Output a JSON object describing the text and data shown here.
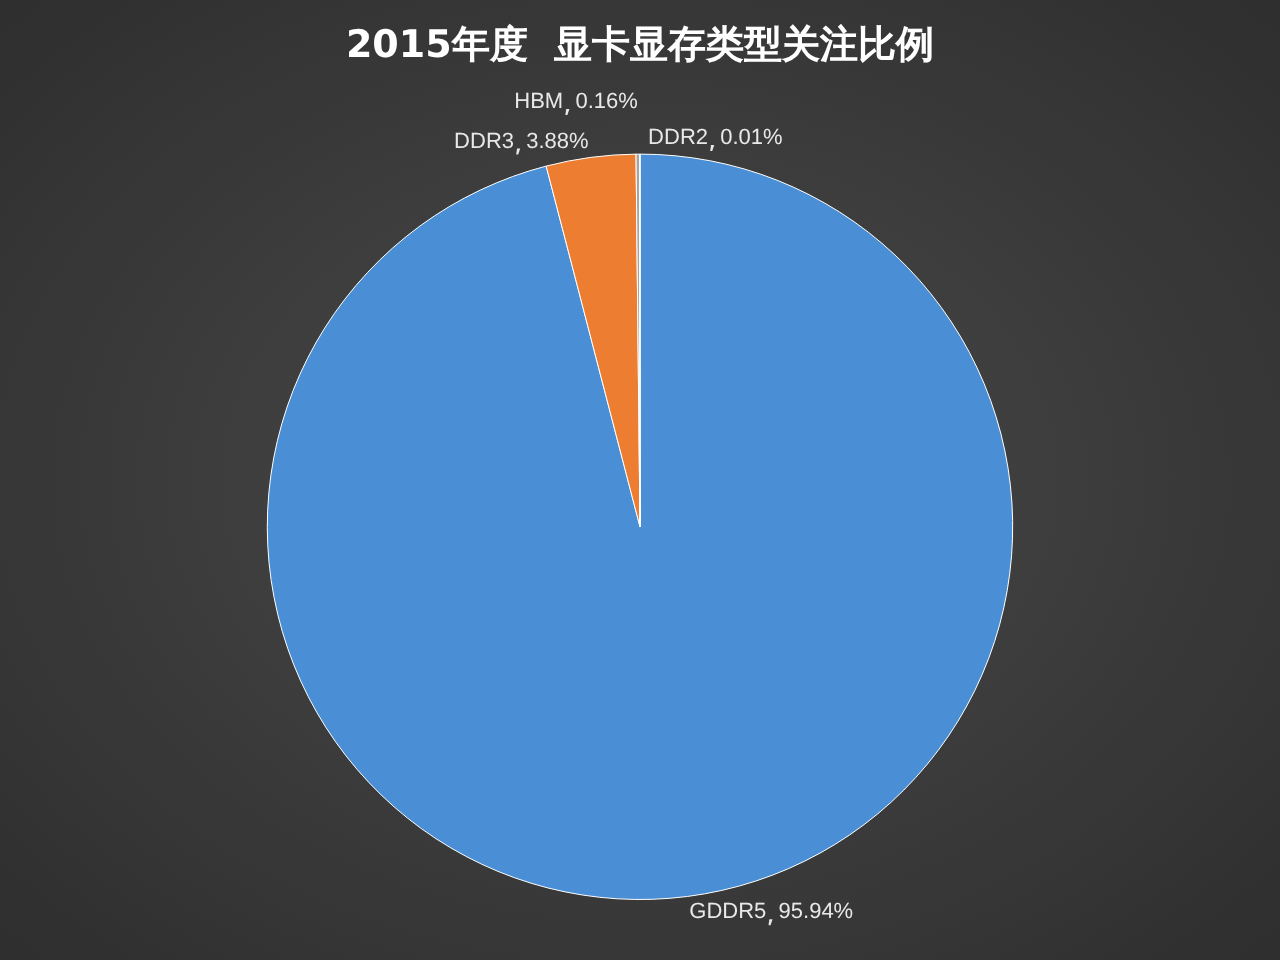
{
  "chart_data": {
    "type": "pie",
    "title": "2015年度  显卡显存类型关注比例",
    "categories": [
      "GDDR5",
      "DDR3",
      "HBM",
      "DDR2"
    ],
    "values": [
      95.94,
      3.88,
      0.16,
      0.01
    ],
    "colors": [
      "#4a8fd6",
      "#ed7d31",
      "#a5a5a5",
      "#ffc000"
    ],
    "value_labels": [
      "95.94%",
      "3.88%",
      "0.16%",
      "0.01%"
    ],
    "legend": false
  }
}
